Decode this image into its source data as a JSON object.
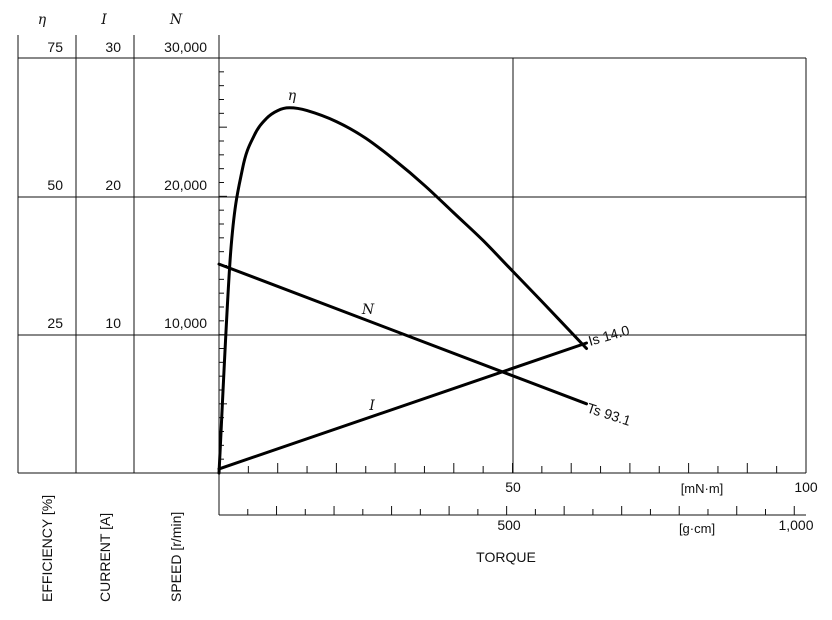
{
  "chart_data": {
    "type": "line",
    "axes": {
      "efficiency": {
        "symbol": "η",
        "ticks": [
          "75",
          "50",
          "25"
        ],
        "label": "EFFICIENCY [%]",
        "range": [
          0,
          75
        ]
      },
      "current": {
        "symbol": "I",
        "ticks": [
          "30",
          "20",
          "10"
        ],
        "label": "CURRENT [A]",
        "range": [
          0,
          30
        ]
      },
      "speed": {
        "symbol": "N",
        "ticks": [
          "30,000",
          "20,000",
          "10,000"
        ],
        "label": "SPEED [r/min]",
        "range": [
          0,
          30000
        ]
      },
      "torque_mnm": {
        "ticks": [
          "50",
          "100"
        ],
        "unit": "[mN·m]",
        "range": [
          0,
          100
        ]
      },
      "torque_gcm": {
        "ticks": [
          "500",
          "1,000"
        ],
        "unit": "[g·cm]",
        "range": [
          0,
          1000
        ]
      },
      "xlabel": "TORQUE"
    },
    "series": [
      {
        "name": "η",
        "axis": "efficiency",
        "x": [
          0,
          2,
          4,
          6,
          8,
          10,
          12,
          15,
          20,
          25,
          30,
          35,
          40,
          45,
          50,
          55,
          62.6
        ],
        "y": [
          0,
          40,
          55,
          61,
          64,
          65.5,
          66,
          65.5,
          63.5,
          60.5,
          56.5,
          52,
          47,
          42,
          36.5,
          31,
          22.5
        ]
      },
      {
        "name": "N",
        "axis": "speed",
        "x": [
          0,
          62.6
        ],
        "y": [
          15100,
          5000
        ]
      },
      {
        "name": "I",
        "axis": "current",
        "x": [
          0,
          62.6
        ],
        "y": [
          0.3,
          9.4
        ]
      }
    ],
    "annotations": {
      "is": "Is 14.0",
      "ts": "Ts 93.1"
    },
    "grid": true
  }
}
